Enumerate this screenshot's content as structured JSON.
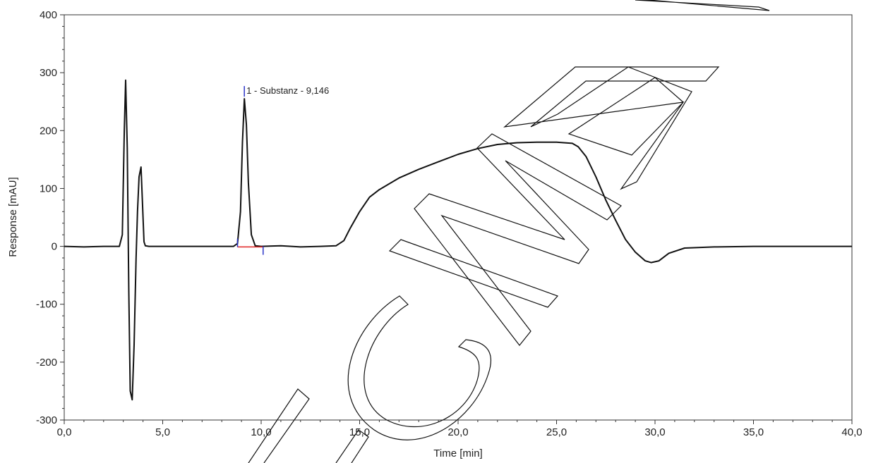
{
  "chart_data": {
    "type": "line",
    "xlabel": "Time [min]",
    "ylabel": "Response [mAU]",
    "xlim": [
      0,
      40
    ],
    "ylim": [
      -300,
      400
    ],
    "x_ticks": [
      0,
      5,
      10,
      15,
      20,
      25,
      30,
      35,
      40
    ],
    "x_tick_labels": [
      "0,0",
      "5,0",
      "10,0",
      "15,0",
      "20,0",
      "25,0",
      "30,0",
      "35,0",
      "40,0"
    ],
    "y_ticks": [
      -300,
      -200,
      -100,
      0,
      100,
      200,
      300,
      400
    ],
    "y_tick_labels": [
      "-300",
      "-200",
      "-100",
      "0",
      "100",
      "200",
      "300",
      "400"
    ],
    "grid": false,
    "series": [
      {
        "color": "#111111",
        "x": [
          0.0,
          1.0,
          2.0,
          2.8,
          2.95,
          3.05,
          3.12,
          3.2,
          3.28,
          3.35,
          3.45,
          3.55,
          3.65,
          3.72,
          3.8,
          3.9,
          3.98,
          4.05,
          4.12,
          4.3,
          5.0,
          6.0,
          7.0,
          8.0,
          8.6,
          8.8,
          8.95,
          9.05,
          9.146,
          9.25,
          9.35,
          9.5,
          9.7,
          10.0,
          11.0,
          12.0,
          13.0,
          13.8,
          14.2,
          14.5,
          15.0,
          15.5,
          16.0,
          17.0,
          18.0,
          19.0,
          20.0,
          21.0,
          22.0,
          23.0,
          24.0,
          25.0,
          25.8,
          26.1,
          26.5,
          27.0,
          27.5,
          28.0,
          28.5,
          29.0,
          29.5,
          29.8,
          30.2,
          30.7,
          31.5,
          33.0,
          35.0,
          37.0,
          40.0
        ],
        "y": [
          0,
          -1,
          0,
          0,
          20,
          200,
          287,
          170,
          -80,
          -250,
          -265,
          -170,
          -20,
          60,
          120,
          137,
          70,
          8,
          1,
          0,
          0,
          0,
          0,
          0,
          0,
          5,
          60,
          180,
          255,
          210,
          110,
          20,
          1,
          0,
          1,
          -1,
          0,
          1,
          10,
          30,
          60,
          85,
          98,
          118,
          133,
          146,
          159,
          169,
          176,
          179,
          180,
          180,
          178,
          172,
          155,
          120,
          80,
          45,
          12,
          -10,
          -25,
          -28,
          -25,
          -12,
          -3,
          -1,
          0,
          0,
          0
        ]
      }
    ],
    "baseline": {
      "color": "#e02020",
      "x": [
        8.8,
        10.1
      ],
      "y": [
        -1,
        -1
      ]
    },
    "peak_markers": {
      "color": "#2b35c8",
      "x": [
        8.8,
        9.146,
        10.1
      ]
    },
    "annotations": [
      {
        "text": "1 - Substanz - 9,146",
        "x": 9.146,
        "y": 255
      }
    ]
  }
}
